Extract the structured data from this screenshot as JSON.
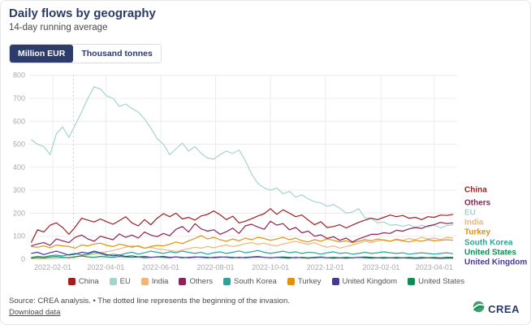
{
  "header": {
    "title": "Daily flows by geography",
    "subtitle": "14-day running average"
  },
  "unit_toggle": {
    "options": [
      "Million EUR",
      "Thousand tonnes"
    ],
    "selected": "Million EUR"
  },
  "footer": {
    "source_note": "Source: CREA analysis. • The dotted line represents the beginning of the invasion.",
    "download_link": "Download data",
    "brand": "CREA"
  },
  "colors": {
    "navy": "#2e3c6b",
    "grid": "#ececec",
    "axis_text": "#a8a8a8",
    "invasion_line": "#cfcfcf"
  },
  "chart_data": {
    "type": "line",
    "title": "Daily flows by geography",
    "subtitle": "14-day running average",
    "ylabel": "Million EUR",
    "ylim": [
      0,
      800
    ],
    "yticks": [
      0,
      100,
      200,
      300,
      400,
      500,
      600,
      700,
      800
    ],
    "xticks": [
      "2022-02-01",
      "2022-04-01",
      "2022-06-01",
      "2022-08-01",
      "2022-10-01",
      "2022-12-01",
      "2023-02-01",
      "2023-04-01"
    ],
    "x_start": "2022-01-08",
    "x_step_days": 7,
    "grid": true,
    "legend_position": "bottom",
    "annotation": {
      "date": "2022-02-24",
      "meaning": "beginning of the invasion",
      "style": "dotted-vertical"
    },
    "legend_order": [
      "China",
      "EU",
      "India",
      "Others",
      "South Korea",
      "Turkey",
      "United Kingdom",
      "United States"
    ],
    "draw_order": [
      "EU",
      "India",
      "Turkey",
      "South Korea",
      "United States",
      "United Kingdom",
      "Others",
      "China"
    ],
    "right_labels": [
      {
        "name": "China",
        "y": 233
      },
      {
        "name": "Others",
        "y": 249
      },
      {
        "name": "EU",
        "y": 261
      },
      {
        "name": "India",
        "y": 273
      },
      {
        "name": "Turkey",
        "y": 285
      },
      {
        "name": "South Korea",
        "y": 298
      },
      {
        "name": "United States",
        "y": 310
      },
      {
        "name": "United Kingdom",
        "y": 322
      }
    ],
    "series": [
      {
        "name": "China",
        "color": "#a01d20",
        "values": [
          72,
          128,
          118,
          148,
          158,
          138,
          108,
          140,
          178,
          170,
          162,
          175,
          163,
          152,
          168,
          185,
          158,
          145,
          172,
          150,
          178,
          198,
          185,
          200,
          175,
          182,
          170,
          188,
          195,
          210,
          193,
          172,
          187,
          158,
          165,
          176,
          188,
          198,
          220,
          195,
          215,
          200,
          185,
          192,
          170,
          150,
          163,
          138,
          142,
          150,
          136,
          148,
          160,
          170,
          178,
          172,
          182,
          192,
          185,
          190,
          178,
          182,
          172,
          185,
          182,
          192,
          190,
          195
        ]
      },
      {
        "name": "EU",
        "color": "#a5d3cf",
        "values": [
          520,
          500,
          490,
          455,
          545,
          575,
          530,
          585,
          640,
          700,
          750,
          740,
          710,
          700,
          665,
          675,
          655,
          640,
          610,
          570,
          525,
          500,
          455,
          480,
          505,
          470,
          490,
          460,
          440,
          435,
          455,
          470,
          460,
          475,
          430,
          370,
          330,
          310,
          300,
          310,
          285,
          295,
          270,
          280,
          262,
          250,
          245,
          230,
          238,
          222,
          200,
          205,
          220,
          180,
          178,
          158,
          162,
          148,
          150,
          143,
          150,
          138,
          148,
          140,
          148,
          136,
          146,
          150
        ]
      },
      {
        "name": "India",
        "color": "#f0b47c",
        "values": [
          2,
          3,
          3,
          4,
          5,
          6,
          8,
          12,
          15,
          18,
          22,
          28,
          33,
          38,
          45,
          52,
          58,
          55,
          48,
          52,
          45,
          42,
          38,
          34,
          40,
          46,
          52,
          48,
          55,
          50,
          57,
          62,
          55,
          60,
          68,
          72,
          65,
          70,
          62,
          58,
          66,
          72,
          78,
          70,
          65,
          72,
          60,
          52,
          58,
          48,
          55,
          62,
          70,
          78,
          72,
          80,
          85,
          78,
          88,
          82,
          90,
          85,
          95,
          88,
          92,
          85,
          95,
          92
        ]
      },
      {
        "name": "Others",
        "color": "#8e2157",
        "values": [
          58,
          66,
          72,
          60,
          88,
          80,
          72,
          95,
          105,
          88,
          78,
          100,
          92,
          85,
          110,
          95,
          105,
          92,
          118,
          105,
          98,
          112,
          102,
          130,
          142,
          118,
          155,
          132,
          122,
          128,
          108,
          120,
          135,
          112,
          145,
          152,
          140,
          130,
          165,
          148,
          155,
          128,
          138,
          115,
          122,
          100,
          106,
          90,
          98,
          82,
          92,
          75,
          88,
          98,
          108,
          108,
          115,
          112,
          126,
          122,
          132,
          138,
          134,
          145,
          150,
          160,
          155,
          158
        ]
      },
      {
        "name": "South Korea",
        "color": "#2ba39b",
        "values": [
          8,
          12,
          10,
          15,
          18,
          14,
          20,
          25,
          18,
          22,
          30,
          24,
          16,
          22,
          18,
          25,
          30,
          22,
          28,
          35,
          30,
          25,
          32,
          28,
          35,
          30,
          25,
          30,
          22,
          28,
          32,
          25,
          30,
          36,
          28,
          32,
          38,
          30,
          25,
          30,
          35,
          28,
          32,
          25,
          30,
          28,
          22,
          28,
          32,
          25,
          28,
          22,
          25,
          30,
          25,
          28,
          32,
          28,
          25,
          28,
          22,
          25,
          28,
          25,
          22,
          25,
          28,
          24
        ]
      },
      {
        "name": "Turkey",
        "color": "#e0920f",
        "values": [
          55,
          52,
          58,
          50,
          62,
          58,
          55,
          48,
          62,
          58,
          66,
          70,
          60,
          55,
          65,
          60,
          52,
          58,
          48,
          55,
          60,
          58,
          65,
          75,
          68,
          80,
          90,
          103,
          88,
          95,
          85,
          78,
          88,
          80,
          92,
          85,
          95,
          90,
          82,
          88,
          95,
          85,
          92,
          80,
          75,
          85,
          78,
          88,
          82,
          75,
          80,
          72,
          78,
          85,
          80,
          88,
          82,
          78,
          85,
          80,
          75,
          82,
          78,
          85,
          80,
          82,
          85,
          82
        ]
      },
      {
        "name": "United Kingdom",
        "color": "#483a93",
        "values": [
          25,
          30,
          20,
          28,
          35,
          26,
          18,
          22,
          30,
          26,
          35,
          28,
          20,
          15,
          18,
          12,
          15,
          10,
          12,
          8,
          10,
          12,
          8,
          10,
          6,
          8,
          10,
          8,
          6,
          8,
          10,
          8,
          6,
          8,
          6,
          8,
          10,
          8,
          6,
          8,
          6,
          5,
          8,
          6,
          5,
          6,
          8,
          6,
          5,
          6,
          5,
          6,
          8,
          6,
          5,
          6,
          5,
          6,
          5,
          6,
          5,
          4,
          5,
          6,
          5,
          4,
          5,
          5
        ]
      },
      {
        "name": "United States",
        "color": "#108c54",
        "values": [
          5,
          8,
          6,
          10,
          12,
          8,
          6,
          10,
          14,
          10,
          8,
          12,
          10,
          8,
          12,
          10,
          8,
          10,
          6,
          8,
          10,
          8,
          6,
          10,
          8,
          6,
          8,
          10,
          8,
          6,
          8,
          10,
          8,
          6,
          8,
          10,
          12,
          8,
          6,
          8,
          10,
          8,
          6,
          8,
          6,
          8,
          10,
          6,
          8,
          6,
          8,
          6,
          8,
          10,
          8,
          6,
          8,
          6,
          8,
          6,
          8,
          6,
          8,
          6,
          8,
          6,
          8,
          8
        ]
      }
    ]
  }
}
